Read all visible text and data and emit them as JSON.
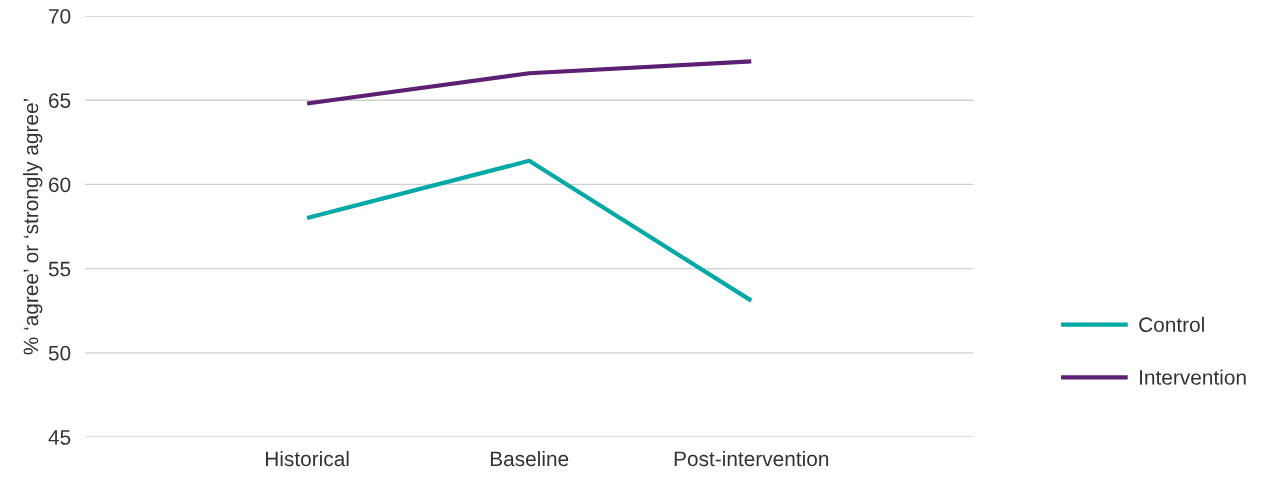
{
  "chart_data": {
    "type": "line",
    "ylabel": "% ‘agree’ or ‘strongly agree’",
    "categories": [
      "Historical",
      "Baseline",
      "Post-intervention"
    ],
    "series": [
      {
        "name": "Control",
        "color": "#00a9a5",
        "values": [
          58.0,
          61.4,
          53.1
        ]
      },
      {
        "name": "Intervention",
        "color": "#5c1f73",
        "values": [
          64.8,
          66.6,
          67.3
        ]
      }
    ],
    "ylim": [
      45,
      70
    ],
    "yticks": [
      45,
      50,
      55,
      60,
      65,
      70
    ],
    "grid": "y",
    "legend": "right",
    "marker": "none",
    "line_style": "solid"
  }
}
